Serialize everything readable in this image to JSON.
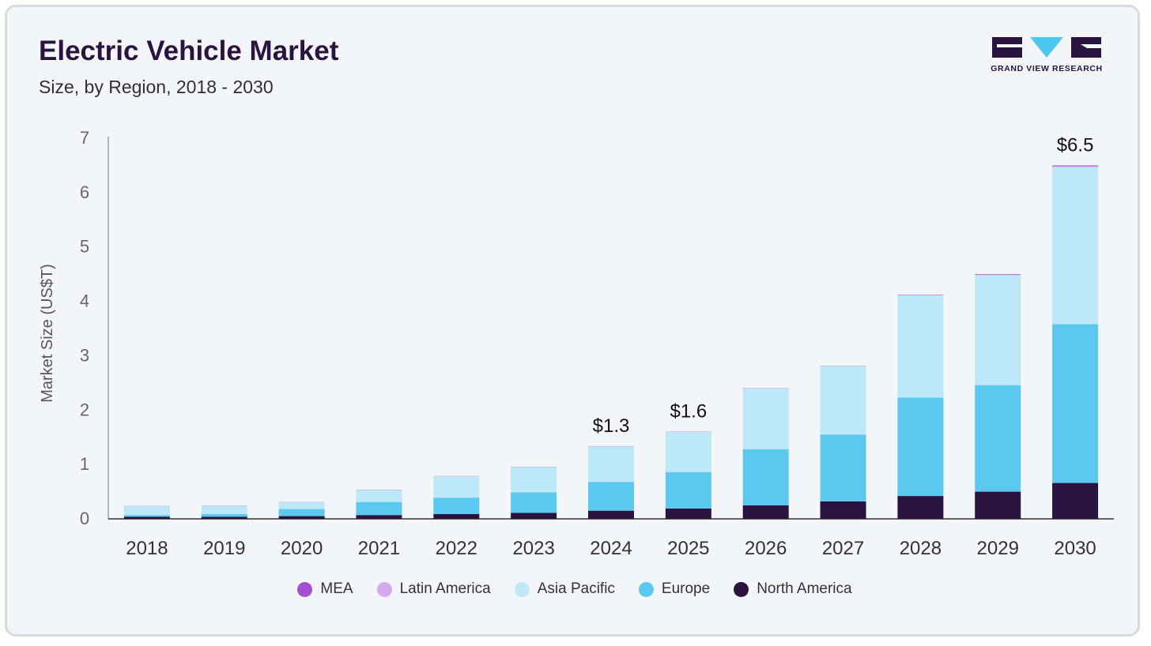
{
  "header": {
    "title": "Electric Vehicle Market",
    "subtitle": "Size, by Region, 2018 - 2030"
  },
  "logo": {
    "text": "GRAND VIEW RESEARCH",
    "icon": "grand-view-research-logo",
    "color": "#2b1340",
    "accent": "#4cc8f0"
  },
  "chart_data": {
    "type": "bar",
    "stacked": true,
    "ylabel": "Market Size (US$T)",
    "ylim": [
      0,
      7
    ],
    "yticks": [
      0,
      1,
      2,
      3,
      4,
      5,
      6,
      7
    ],
    "grid": false,
    "legend_position": "bottom",
    "categories": [
      "2018",
      "2019",
      "2020",
      "2021",
      "2022",
      "2023",
      "2024",
      "2025",
      "2026",
      "2027",
      "2028",
      "2029",
      "2030"
    ],
    "series": [
      {
        "name": "North America",
        "color": "#2b1340",
        "values": [
          0.04,
          0.04,
          0.05,
          0.07,
          0.09,
          0.11,
          0.15,
          0.19,
          0.25,
          0.32,
          0.42,
          0.5,
          0.66
        ]
      },
      {
        "name": "Europe",
        "color": "#5bc8f0",
        "values": [
          0.03,
          0.05,
          0.13,
          0.24,
          0.3,
          0.38,
          0.53,
          0.67,
          1.03,
          1.23,
          1.81,
          1.96,
          2.92
        ]
      },
      {
        "name": "Asia Pacific",
        "color": "#bde8f7",
        "values": [
          0.16,
          0.15,
          0.12,
          0.22,
          0.39,
          0.46,
          0.65,
          0.74,
          1.12,
          1.26,
          1.88,
          2.02,
          2.89
        ]
      },
      {
        "name": "Latin America",
        "color": "#d6a8ec",
        "values": [
          0.005,
          0.005,
          0.005,
          0.005,
          0.005,
          0.005,
          0.005,
          0.005,
          0.005,
          0.005,
          0.01,
          0.01,
          0.015
        ]
      },
      {
        "name": "MEA",
        "color": "#a44fd0",
        "values": [
          0.002,
          0.002,
          0.002,
          0.002,
          0.002,
          0.002,
          0.002,
          0.002,
          0.002,
          0.002,
          0.005,
          0.01,
          0.015
        ]
      }
    ],
    "annotations": [
      {
        "category": "2024",
        "label": "$1.3"
      },
      {
        "category": "2025",
        "label": "$1.6"
      },
      {
        "category": "2030",
        "label": "$6.5"
      }
    ],
    "legend_order": [
      "MEA",
      "Latin America",
      "Asia Pacific",
      "Europe",
      "North America"
    ]
  }
}
